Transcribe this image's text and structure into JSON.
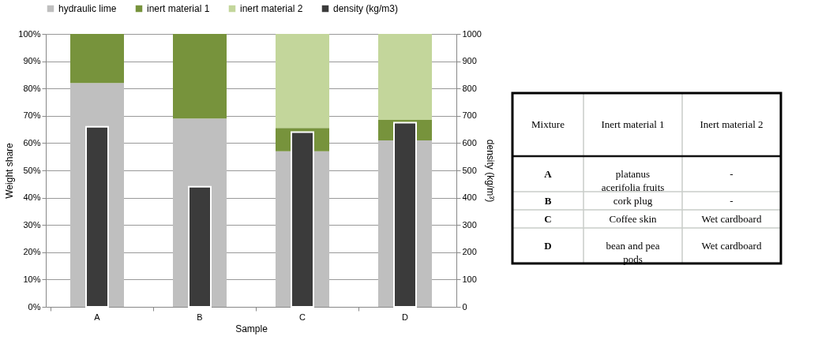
{
  "chart_data": [
    {
      "type": "bar",
      "stacked": true,
      "categories": [
        "A",
        "B",
        "C",
        "D"
      ],
      "xlabel": "Sample",
      "ylabel": "Weight share",
      "y2label": "density (kg/m³)",
      "ylim": [
        0,
        100
      ],
      "yticks": [
        {
          "value": 0,
          "label": "0%"
        },
        {
          "value": 10,
          "label": "10%"
        },
        {
          "value": 20,
          "label": "20%"
        },
        {
          "value": 30,
          "label": "30%"
        },
        {
          "value": 40,
          "label": "40%"
        },
        {
          "value": 50,
          "label": "50%"
        },
        {
          "value": 60,
          "label": "60%"
        },
        {
          "value": 70,
          "label": "70%"
        },
        {
          "value": 80,
          "label": "80%"
        },
        {
          "value": 90,
          "label": "90%"
        },
        {
          "value": 100,
          "label": "100%"
        }
      ],
      "y2lim": [
        0,
        1000
      ],
      "y2ticks": [
        0,
        100,
        200,
        300,
        400,
        500,
        600,
        700,
        800,
        900,
        1000
      ],
      "grid": "y",
      "legend": "top",
      "series": [
        {
          "name": "hydraulic lime",
          "color": "#bfbfbf",
          "values": [
            82,
            69,
            57,
            61
          ]
        },
        {
          "name": "inert material 1",
          "color": "#77933c",
          "values": [
            18,
            31,
            8.5,
            7.5
          ]
        },
        {
          "name": "inert material 2",
          "color": "#c3d69b",
          "values": [
            null,
            null,
            34.5,
            31.5
          ]
        },
        {
          "name": "density (kg/m3)",
          "color": "#3b3b3b",
          "axis": "y2",
          "values": [
            660,
            440,
            640,
            675
          ]
        }
      ]
    },
    {
      "type": "other",
      "ylabel": "Mixture",
      "categories": [
        "Inert material 1",
        "Inert material 2"
      ],
      "y_categories": [
        "A",
        "B",
        "C",
        "D"
      ],
      "cell_labels": [
        [
          "platanus acerifolia fruits",
          "-"
        ],
        [
          "cork plug",
          "-"
        ],
        [
          "Coffee skin",
          "Wet cardboard"
        ],
        [
          "bean and pea pods",
          "Wet cardboard"
        ]
      ]
    }
  ]
}
